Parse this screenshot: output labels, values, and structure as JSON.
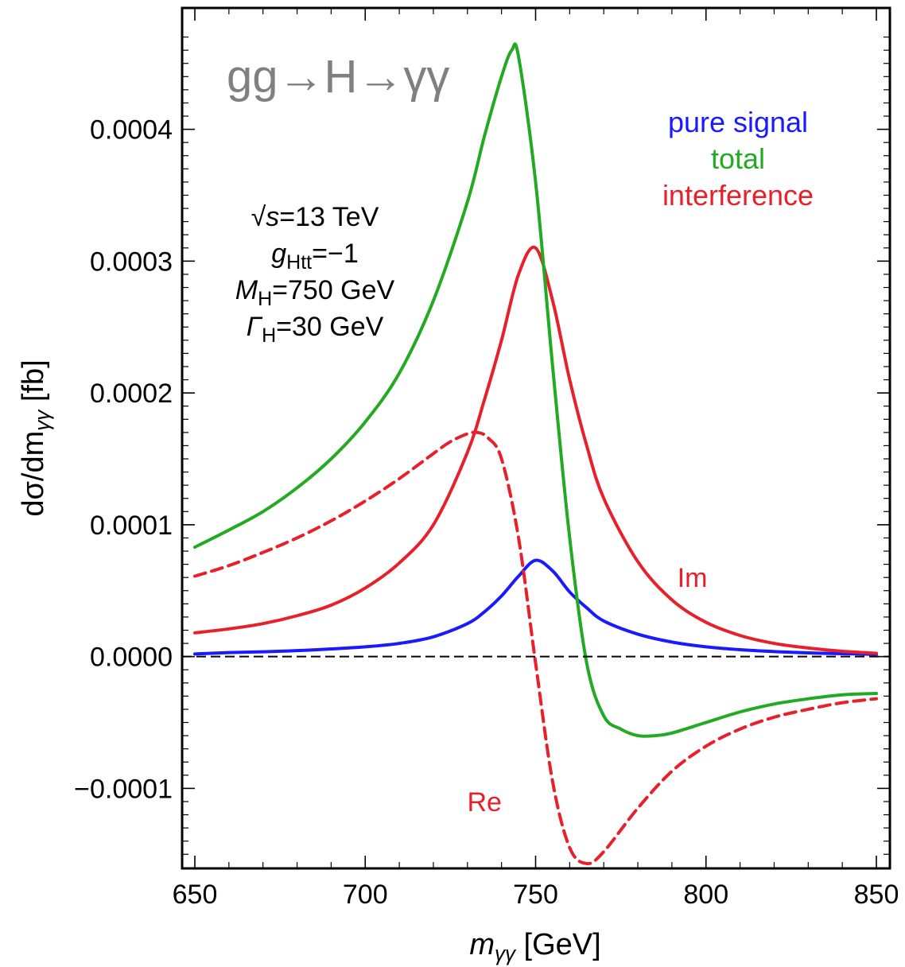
{
  "chart_data": {
    "type": "line",
    "title": "gg→H→γγ",
    "xlabel": "m_γγ [GeV]",
    "xlabel_main": "m",
    "xlabel_sub": "γγ",
    "xlabel_unit": " [GeV]",
    "ylabel": "dσ/dm_γγ [fb]",
    "ylabel_main": "dσ/dm",
    "ylabel_sub": "γγ",
    "ylabel_unit": " [fb]",
    "xlim": [
      650,
      850
    ],
    "ylim": [
      -0.00018,
      0.00048
    ],
    "x_ticks": [
      650,
      700,
      750,
      800,
      850
    ],
    "x_tick_labels": [
      "650",
      "700",
      "750",
      "800",
      "850"
    ],
    "y_ticks": [
      -0.0001,
      0,
      0.0001,
      0.0002,
      0.0003,
      0.0004
    ],
    "y_tick_labels": [
      "−0.0001",
      "0.0000",
      "0.0001",
      "0.0002",
      "0.0003",
      "0.0004"
    ],
    "parameters": [
      {
        "main": "√s",
        "sub": "",
        "rest": "=13 TeV"
      },
      {
        "main": "g",
        "sub": "Htt",
        "rest": "=−1"
      },
      {
        "main": "M",
        "sub": "H",
        "rest": "=750 GeV"
      },
      {
        "main": "Γ",
        "sub": "H",
        "rest": "=30 GeV"
      }
    ],
    "legend": [
      {
        "label": "pure signal",
        "color": "#1a1aff"
      },
      {
        "label": "total",
        "color": "#22aa22"
      },
      {
        "label": "interference",
        "color": "#e8202a"
      }
    ],
    "annotations": [
      {
        "text": "Im",
        "x": 796,
        "y": 6e-05
      },
      {
        "text": "Re",
        "x": 735,
        "y": -0.00011
      }
    ],
    "reference_line": {
      "y": 0,
      "style": "dashed",
      "color": "#000000"
    },
    "physics": {
      "mass": 750,
      "width": 30
    },
    "series": [
      {
        "name": "pure signal",
        "color": "#1a1aff",
        "dashed": false,
        "x": [
          650,
          660,
          670,
          680,
          690,
          700,
          710,
          720,
          730,
          735,
          740,
          745,
          750,
          755,
          760,
          765,
          770,
          780,
          790,
          800,
          810,
          820,
          830,
          840,
          850
        ],
        "values": [
          2e-06,
          3e-06,
          3.6e-06,
          4.5e-06,
          5.8e-06,
          7.4e-06,
          1e-05,
          1.5e-05,
          2.5e-05,
          3.4e-05,
          4.6e-05,
          6.1e-05,
          7.3e-05,
          6.5e-05,
          4.9e-05,
          3.7e-05,
          2.7e-05,
          1.7e-05,
          1.1e-05,
          7.4e-06,
          5.2e-06,
          3.8e-06,
          2.8e-06,
          2.2e-06,
          1.7e-06
        ]
      },
      {
        "name": "interference Im",
        "color": "#e8202a",
        "dashed": false,
        "x": [
          650,
          660,
          670,
          680,
          690,
          700,
          710,
          720,
          730,
          735,
          740,
          745,
          750,
          755,
          760,
          765,
          770,
          780,
          790,
          800,
          810,
          820,
          830,
          840,
          850
        ],
        "values": [
          1.8e-05,
          2.1e-05,
          2.5e-05,
          3.1e-05,
          3.9e-05,
          5.2e-05,
          7.1e-05,
          0.0001,
          0.000155,
          0.000195,
          0.00024,
          0.00029,
          0.00031,
          0.00027,
          0.00021,
          0.00016,
          0.00012,
          7.2e-05,
          4.3e-05,
          2.6e-05,
          1.6e-05,
          1e-05,
          6.5e-06,
          4e-06,
          2.5e-06
        ]
      },
      {
        "name": "interference Re",
        "color": "#e8202a",
        "dashed": true,
        "x": [
          650,
          660,
          670,
          680,
          690,
          700,
          710,
          720,
          725,
          730,
          733,
          736,
          740,
          745,
          750,
          755,
          760,
          765,
          770,
          780,
          790,
          800,
          810,
          820,
          830,
          840,
          850
        ],
        "values": [
          6.1e-05,
          6.9e-05,
          7.9e-05,
          9e-05,
          0.000103,
          0.000118,
          0.000135,
          0.000154,
          0.000163,
          0.000169,
          0.00017,
          0.000166,
          0.00015,
          9e-05,
          -5e-06,
          -9.5e-05,
          -0.000145,
          -0.000157,
          -0.000148,
          -0.000115,
          -8.7e-05,
          -6.8e-05,
          -5.5e-05,
          -4.6e-05,
          -4e-05,
          -3.5e-05,
          -3.2e-05
        ]
      },
      {
        "name": "total",
        "color": "#22aa22",
        "dashed": false,
        "x": [
          650,
          660,
          670,
          680,
          690,
          700,
          710,
          720,
          730,
          735,
          740,
          743,
          745,
          750,
          755,
          760,
          765,
          770,
          775,
          780,
          785,
          790,
          800,
          810,
          820,
          830,
          840,
          850
        ],
        "values": [
          8.3e-05,
          9.6e-05,
          0.00011,
          0.000128,
          0.00015,
          0.000178,
          0.000215,
          0.00027,
          0.000345,
          0.000395,
          0.00044,
          0.00046,
          0.000455,
          0.00036,
          0.00022,
          9e-05,
          -5e-06,
          -4.5e-05,
          -5.5e-05,
          -6e-05,
          -6e-05,
          -5.8e-05,
          -5e-05,
          -4.2e-05,
          -3.6e-05,
          -3.2e-05,
          -2.9e-05,
          -2.8e-05
        ]
      }
    ]
  }
}
